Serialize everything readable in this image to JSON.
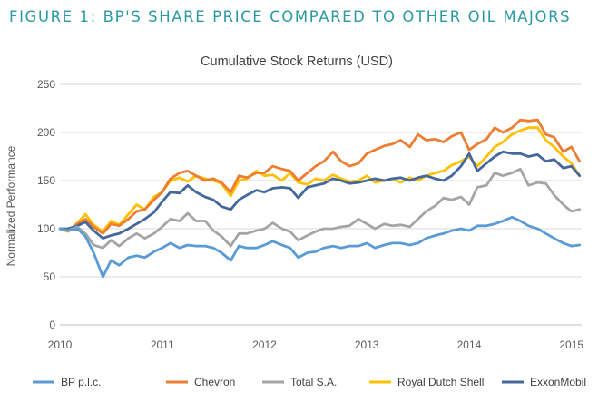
{
  "figure_heading": "FIGURE 1: BP'S SHARE PRICE COMPARED TO OTHER OIL MAJORS",
  "chart_data": {
    "type": "line",
    "title": "Cumulative Stock Returns (USD)",
    "xlabel": "",
    "ylabel": "Normalized Performance",
    "xlim": [
      2010,
      2015.1
    ],
    "ylim": [
      0,
      250
    ],
    "x_ticks": [
      2010,
      2011,
      2012,
      2013,
      2014,
      2015
    ],
    "y_ticks": [
      0,
      50,
      100,
      150,
      200,
      250
    ],
    "grid": "horizontal",
    "legend_position": "bottom",
    "series": [
      {
        "name": "Royal Dutch Shell",
        "color": "#ffc000",
        "x": [
          2010.0,
          2010.08,
          2010.17,
          2010.25,
          2010.33,
          2010.42,
          2010.5,
          2010.58,
          2010.67,
          2010.75,
          2010.83,
          2010.92,
          2011.0,
          2011.08,
          2011.17,
          2011.25,
          2011.33,
          2011.42,
          2011.5,
          2011.58,
          2011.67,
          2011.75,
          2011.83,
          2011.92,
          2012.0,
          2012.08,
          2012.17,
          2012.25,
          2012.33,
          2012.42,
          2012.5,
          2012.58,
          2012.67,
          2012.75,
          2012.83,
          2012.92,
          2013.0,
          2013.08,
          2013.17,
          2013.25,
          2013.33,
          2013.42,
          2013.5,
          2013.58,
          2013.67,
          2013.75,
          2013.83,
          2013.92,
          2014.0,
          2014.08,
          2014.17,
          2014.25,
          2014.33,
          2014.42,
          2014.5,
          2014.58,
          2014.67,
          2014.75,
          2014.83,
          2014.92,
          2015.0,
          2015.08
        ],
        "values": [
          100,
          97,
          106,
          115,
          104,
          97,
          108,
          104,
          115,
          125,
          120,
          133,
          138,
          150,
          153,
          149,
          155,
          152,
          150,
          147,
          134,
          150,
          152,
          160,
          155,
          156,
          150,
          158,
          148,
          146,
          152,
          150,
          156,
          152,
          149,
          150,
          155,
          148,
          150,
          152,
          148,
          153,
          150,
          155,
          158,
          160,
          166,
          170,
          175,
          165,
          175,
          185,
          190,
          198,
          202,
          205,
          205,
          192,
          185,
          175,
          168,
          155
        ]
      },
      {
        "name": "Chevron",
        "color": "#ed7d31",
        "x": [
          2010.0,
          2010.08,
          2010.17,
          2010.25,
          2010.33,
          2010.42,
          2010.5,
          2010.58,
          2010.67,
          2010.75,
          2010.83,
          2010.92,
          2011.0,
          2011.08,
          2011.17,
          2011.25,
          2011.33,
          2011.42,
          2011.5,
          2011.58,
          2011.67,
          2011.75,
          2011.83,
          2011.92,
          2012.0,
          2012.08,
          2012.17,
          2012.25,
          2012.33,
          2012.42,
          2012.5,
          2012.58,
          2012.67,
          2012.75,
          2012.83,
          2012.92,
          2013.0,
          2013.08,
          2013.17,
          2013.25,
          2013.33,
          2013.42,
          2013.5,
          2013.58,
          2013.67,
          2013.75,
          2013.83,
          2013.92,
          2014.0,
          2014.08,
          2014.17,
          2014.25,
          2014.33,
          2014.42,
          2014.5,
          2014.58,
          2014.67,
          2014.75,
          2014.83,
          2014.92,
          2015.0,
          2015.08
        ],
        "values": [
          100,
          98,
          105,
          110,
          102,
          95,
          105,
          103,
          110,
          118,
          120,
          130,
          138,
          152,
          158,
          160,
          155,
          150,
          152,
          148,
          138,
          155,
          153,
          158,
          158,
          165,
          162,
          160,
          150,
          158,
          165,
          170,
          180,
          170,
          165,
          168,
          178,
          182,
          186,
          188,
          192,
          185,
          198,
          192,
          193,
          190,
          196,
          200,
          182,
          188,
          193,
          205,
          200,
          205,
          213,
          212,
          213,
          198,
          195,
          180,
          185,
          170
        ]
      },
      {
        "name": "ExxonMobil",
        "color": "#44689b",
        "x": [
          2010.0,
          2010.08,
          2010.17,
          2010.25,
          2010.33,
          2010.42,
          2010.5,
          2010.58,
          2010.67,
          2010.75,
          2010.83,
          2010.92,
          2011.0,
          2011.08,
          2011.17,
          2011.25,
          2011.33,
          2011.42,
          2011.5,
          2011.58,
          2011.67,
          2011.75,
          2011.83,
          2011.92,
          2012.0,
          2012.08,
          2012.17,
          2012.25,
          2012.33,
          2012.42,
          2012.5,
          2012.58,
          2012.67,
          2012.75,
          2012.83,
          2012.92,
          2013.0,
          2013.08,
          2013.17,
          2013.25,
          2013.33,
          2013.42,
          2013.5,
          2013.58,
          2013.67,
          2013.75,
          2013.83,
          2013.92,
          2014.0,
          2014.08,
          2014.17,
          2014.25,
          2014.33,
          2014.42,
          2014.5,
          2014.58,
          2014.67,
          2014.75,
          2014.83,
          2014.92,
          2015.0,
          2015.08
        ],
        "values": [
          100,
          100,
          103,
          107,
          98,
          90,
          93,
          95,
          100,
          105,
          110,
          117,
          128,
          138,
          137,
          145,
          138,
          133,
          130,
          123,
          120,
          130,
          135,
          140,
          138,
          142,
          143,
          142,
          132,
          143,
          145,
          147,
          152,
          150,
          147,
          148,
          150,
          152,
          150,
          152,
          153,
          150,
          153,
          155,
          152,
          150,
          155,
          165,
          178,
          160,
          168,
          175,
          180,
          178,
          178,
          175,
          177,
          170,
          172,
          163,
          165,
          155
        ]
      },
      {
        "name": "Total S.A.",
        "color": "#a5a5a5",
        "x": [
          2010.0,
          2010.08,
          2010.17,
          2010.25,
          2010.33,
          2010.42,
          2010.5,
          2010.58,
          2010.67,
          2010.75,
          2010.83,
          2010.92,
          2011.0,
          2011.08,
          2011.17,
          2011.25,
          2011.33,
          2011.42,
          2011.5,
          2011.58,
          2011.67,
          2011.75,
          2011.83,
          2011.92,
          2012.0,
          2012.08,
          2012.17,
          2012.25,
          2012.33,
          2012.42,
          2012.5,
          2012.58,
          2012.67,
          2012.75,
          2012.83,
          2012.92,
          2013.0,
          2013.08,
          2013.17,
          2013.25,
          2013.33,
          2013.42,
          2013.5,
          2013.58,
          2013.67,
          2013.75,
          2013.83,
          2013.92,
          2014.0,
          2014.08,
          2014.17,
          2014.25,
          2014.33,
          2014.42,
          2014.5,
          2014.58,
          2014.67,
          2014.75,
          2014.83,
          2014.92,
          2015.0,
          2015.08
        ],
        "values": [
          100,
          98,
          102,
          95,
          83,
          80,
          88,
          82,
          90,
          95,
          90,
          95,
          102,
          110,
          108,
          116,
          108,
          108,
          98,
          92,
          82,
          95,
          95,
          98,
          100,
          106,
          100,
          97,
          88,
          93,
          97,
          100,
          100,
          102,
          103,
          110,
          105,
          100,
          105,
          103,
          104,
          102,
          110,
          118,
          124,
          132,
          130,
          133,
          125,
          143,
          145,
          158,
          155,
          158,
          162,
          145,
          148,
          147,
          135,
          125,
          118,
          120
        ]
      },
      {
        "name": "BP p.l.c.",
        "color": "#5b9bd5",
        "x": [
          2010.0,
          2010.08,
          2010.17,
          2010.25,
          2010.33,
          2010.42,
          2010.5,
          2010.58,
          2010.67,
          2010.75,
          2010.83,
          2010.92,
          2011.0,
          2011.08,
          2011.17,
          2011.25,
          2011.33,
          2011.42,
          2011.5,
          2011.58,
          2011.67,
          2011.75,
          2011.83,
          2011.92,
          2012.0,
          2012.08,
          2012.17,
          2012.25,
          2012.33,
          2012.42,
          2012.5,
          2012.58,
          2012.67,
          2012.75,
          2012.83,
          2012.92,
          2013.0,
          2013.08,
          2013.17,
          2013.25,
          2013.33,
          2013.42,
          2013.5,
          2013.58,
          2013.67,
          2013.75,
          2013.83,
          2013.92,
          2014.0,
          2014.08,
          2014.17,
          2014.25,
          2014.33,
          2014.42,
          2014.5,
          2014.58,
          2014.67,
          2014.75,
          2014.83,
          2014.92,
          2015.0,
          2015.08
        ],
        "values": [
          100,
          98,
          100,
          92,
          75,
          50,
          67,
          62,
          70,
          72,
          70,
          76,
          80,
          85,
          80,
          83,
          82,
          82,
          80,
          75,
          67,
          82,
          80,
          80,
          83,
          87,
          83,
          80,
          70,
          75,
          76,
          80,
          82,
          80,
          82,
          82,
          85,
          80,
          83,
          85,
          85,
          83,
          85,
          90,
          93,
          95,
          98,
          100,
          98,
          103,
          103,
          105,
          108,
          112,
          108,
          103,
          100,
          95,
          90,
          85,
          82,
          83
        ]
      }
    ],
    "legend_order": [
      "BP p.l.c.",
      "Chevron",
      "Total S.A.",
      "Royal Dutch Shell",
      "ExxonMobil"
    ]
  }
}
